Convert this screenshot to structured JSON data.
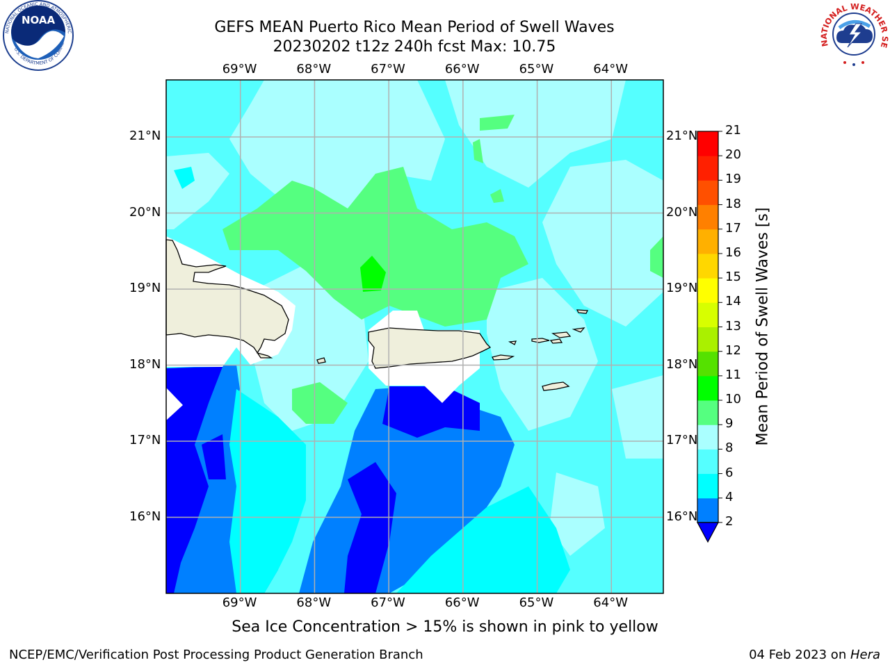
{
  "header": {
    "title_line1": "GEFS MEAN Puerto Rico Mean Period of Swell Waves",
    "title_line2": "20230202 t12z 240h fcst   Max: 10.75"
  },
  "map": {
    "lon_labels": [
      "69°W",
      "68°W",
      "67°W",
      "66°W",
      "65°W",
      "64°W"
    ],
    "lat_labels": [
      "21°N",
      "20°N",
      "19°N",
      "18°N",
      "17°N",
      "16°N"
    ],
    "lon_range": [
      -70.0,
      -63.3
    ],
    "lat_range": [
      15.0,
      21.75
    ]
  },
  "colorbar": {
    "label": "Mean Period of Swell Waves [s]",
    "ticks": [
      "2",
      "4",
      "6",
      "8",
      "9",
      "10",
      "11",
      "12",
      "13",
      "14",
      "15",
      "16",
      "17",
      "18",
      "19",
      "20",
      "21"
    ],
    "colors": [
      "#0000ff",
      "#0080ff",
      "#00ffff",
      "#55ffff",
      "#aaffff",
      "#55ff80",
      "#00ff00",
      "#55e100",
      "#aaf000",
      "#d7ff00",
      "#ffff00",
      "#ffd700",
      "#ffb000",
      "#ff8000",
      "#ff5000",
      "#ff2000",
      "#ff0000"
    ]
  },
  "footer": {
    "ice_note": "Sea Ice Concentration > 15% is shown in pink to yellow",
    "branch": "NCEP/EMC/Verification Post Processing Product Generation Branch",
    "date_text": "04 Feb 2023 on ",
    "host": "Hera"
  },
  "logos": {
    "noaa_text": "NOAA",
    "noaa_ring": "NATIONAL OCEANIC AND ATMOSPHERIC ADMINISTRATION",
    "noaa_ring_bottom": "U.S. DEPARTMENT OF COMMERCE",
    "nws_ring": "NATIONAL WEATHER SERVICE"
  }
}
